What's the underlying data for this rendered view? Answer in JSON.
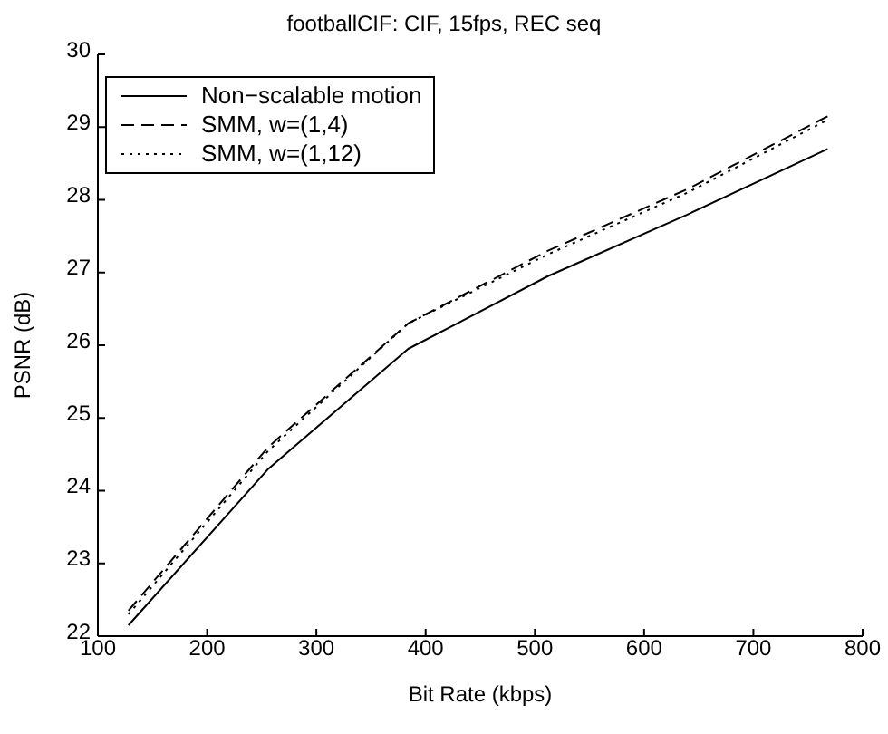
{
  "chart_data": {
    "type": "line",
    "title": "footballCIF:  CIF, 15fps, REC seq",
    "xlabel": "Bit Rate (kbps)",
    "ylabel": "PSNR (dB)",
    "x": [
      128,
      256,
      384,
      512,
      640,
      768
    ],
    "series": [
      {
        "name": "Non−scalable motion",
        "color": "#000000",
        "line_style": "solid",
        "values": [
          22.15,
          24.3,
          25.95,
          26.95,
          27.8,
          28.7
        ]
      },
      {
        "name": "SMM, w=(1,4)",
        "color": "#000000",
        "line_style": "dashed",
        "values": [
          22.35,
          24.6,
          26.3,
          27.3,
          28.15,
          29.15
        ]
      },
      {
        "name": "SMM, w=(1,12)",
        "color": "#000000",
        "line_style": "dotted",
        "values": [
          22.3,
          24.55,
          26.3,
          27.25,
          28.1,
          29.1
        ]
      }
    ],
    "xlim": [
      100,
      800
    ],
    "xticks": [
      100,
      200,
      300,
      400,
      500,
      600,
      700,
      800
    ],
    "ylim": [
      22,
      30
    ],
    "yticks": [
      22,
      23,
      24,
      25,
      26,
      27,
      28,
      29,
      30
    ],
    "grid": false,
    "legend": "top left",
    "marker": "none"
  }
}
